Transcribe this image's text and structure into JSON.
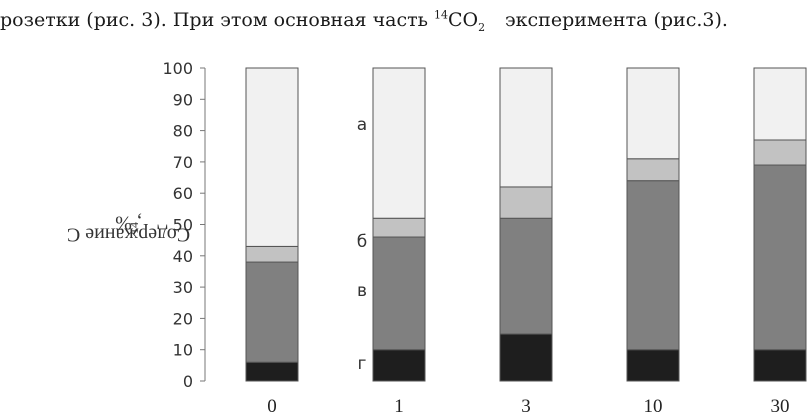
{
  "document": {
    "line_left": "розетки (рис. 3). При этом основная часть ",
    "line_sup": "14",
    "line_chem": "CO",
    "line_sub": "2",
    "line_right": "эксперимента (рис.3)."
  },
  "chart_data": {
    "type": "bar",
    "stacked": true,
    "ylabel_main": "Содержание С",
    "ylabel_sup": "14",
    "ylabel_unit": ", %",
    "ylim": [
      0,
      100
    ],
    "yticks": [
      0,
      10,
      20,
      30,
      40,
      50,
      60,
      70,
      80,
      90,
      100
    ],
    "categories": [
      "0",
      "1",
      "3",
      "10",
      "30"
    ],
    "series": [
      {
        "name": "г",
        "values": [
          6,
          10,
          15,
          10,
          10
        ],
        "color": "#1e1e1e"
      },
      {
        "name": "в",
        "values": [
          32,
          36,
          37,
          54,
          59
        ],
        "color": "#808080"
      },
      {
        "name": "б",
        "values": [
          5,
          6,
          10,
          7,
          8
        ],
        "color": "#c2c2c2"
      },
      {
        "name": "а",
        "values": [
          57,
          48,
          38,
          29,
          23
        ],
        "color": "#f1f1f1"
      }
    ],
    "grid": false,
    "legend": "inline labels beside the second bar"
  }
}
